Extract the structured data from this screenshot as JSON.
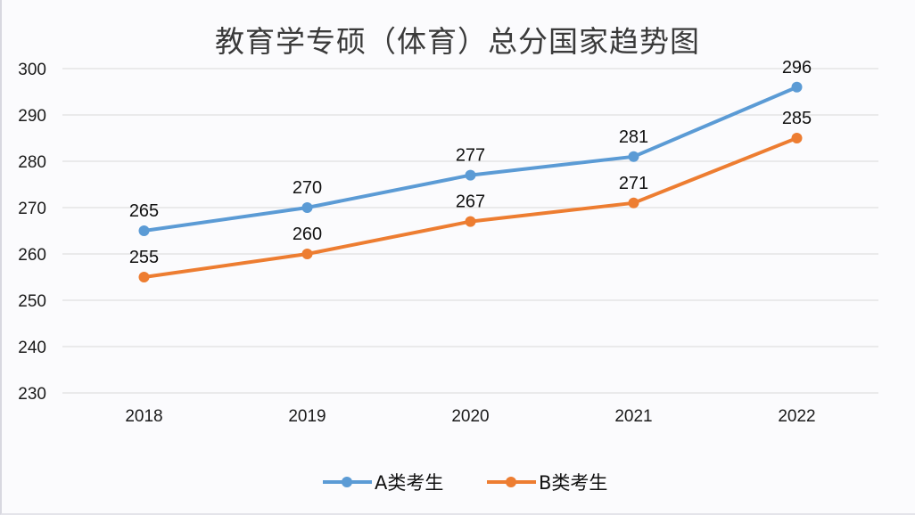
{
  "chart_data": {
    "type": "line",
    "title": "教育学专硕（体育）总分国家趋势图",
    "categories": [
      "2018",
      "2019",
      "2020",
      "2021",
      "2022"
    ],
    "series": [
      {
        "name": "A类考生",
        "color": "#5b9bd5",
        "values": [
          265,
          270,
          277,
          281,
          296
        ],
        "labels": [
          "265",
          "270",
          "277",
          "281",
          "296"
        ]
      },
      {
        "name": "B类考生",
        "color": "#ed7d31",
        "values": [
          255,
          260,
          267,
          271,
          285
        ],
        "labels": [
          "255",
          "260",
          "267",
          "271",
          "285"
        ]
      }
    ],
    "ylim": [
      230,
      300
    ],
    "yticks": [
      "230",
      "240",
      "250",
      "260",
      "270",
      "280",
      "290",
      "300"
    ],
    "xlabel": "",
    "ylabel": "",
    "grid": true,
    "legend": "bottom"
  }
}
